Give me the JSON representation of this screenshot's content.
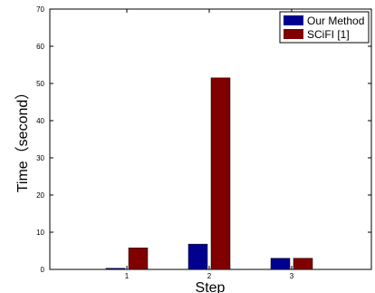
{
  "chart_data": {
    "type": "bar",
    "categories": [
      "1",
      "2",
      "3"
    ],
    "series": [
      {
        "name": "Our Method",
        "values": [
          0.3,
          6.8,
          3.0
        ],
        "color": "#00008F"
      },
      {
        "name": "SCiFI [1]",
        "values": [
          5.8,
          51.5,
          3.0
        ],
        "color": "#800000"
      }
    ],
    "xlabel": "Step",
    "ylabel": "Time（second）",
    "ylim": [
      0,
      70
    ],
    "yticks": [
      "0",
      "10",
      "20",
      "30",
      "40",
      "50",
      "60",
      "70"
    ],
    "grid": false,
    "legend_position": "top-right"
  }
}
